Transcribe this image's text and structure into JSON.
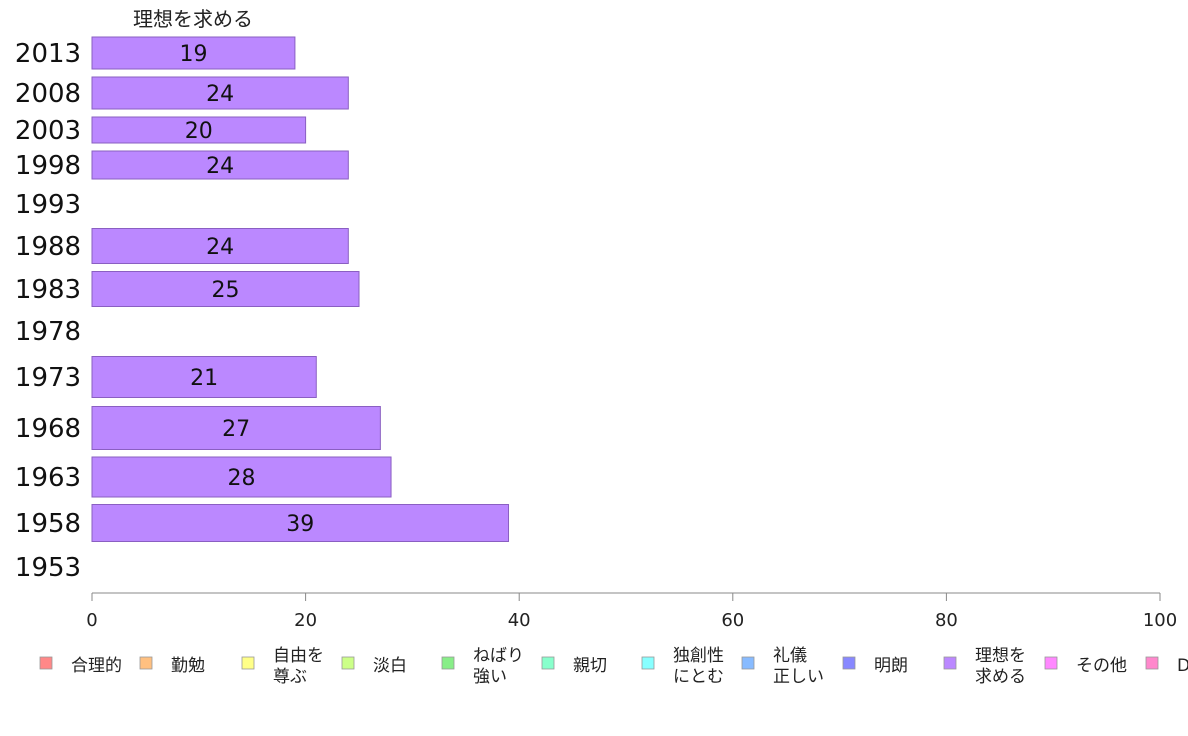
{
  "chart_data": {
    "type": "bar",
    "orientation": "horizontal",
    "series_title": "理想を求める",
    "series_color": "#bb88ff",
    "categories": [
      "2013",
      "2008",
      "2003",
      "1998",
      "1993",
      "1988",
      "1983",
      "1978",
      "1973",
      "1968",
      "1963",
      "1958",
      "1953"
    ],
    "values": [
      19,
      24,
      20,
      24,
      null,
      24,
      25,
      null,
      21,
      27,
      28,
      39,
      null
    ],
    "xlim": [
      0,
      100
    ],
    "xticks": [
      "0",
      "20",
      "40",
      "60",
      "80",
      "100"
    ],
    "grid": false,
    "legend_placement": "bottom",
    "legend": [
      {
        "lines": [
          "合理的"
        ],
        "color": "#ff8888"
      },
      {
        "lines": [
          "勤勉"
        ],
        "color": "#ffc080"
      },
      {
        "lines": [
          "自由を",
          "尊ぶ"
        ],
        "color": "#ffff88"
      },
      {
        "lines": [
          "淡白"
        ],
        "color": "#ccff88"
      },
      {
        "lines": [
          "ねばり",
          "強い"
        ],
        "color": "#88ee88"
      },
      {
        "lines": [
          "親切"
        ],
        "color": "#88ffcc"
      },
      {
        "lines": [
          "独創性",
          "にとむ"
        ],
        "color": "#88ffff"
      },
      {
        "lines": [
          "礼儀",
          "正しい"
        ],
        "color": "#88bbff"
      },
      {
        "lines": [
          "明朗"
        ],
        "color": "#8888ff"
      },
      {
        "lines": [
          "理想を",
          "求める"
        ],
        "color": "#bb88ff"
      },
      {
        "lines": [
          "その他"
        ],
        "color": "#ff88ff"
      },
      {
        "lines": [
          "D"
        ],
        "color": "#ff88cc"
      }
    ]
  }
}
